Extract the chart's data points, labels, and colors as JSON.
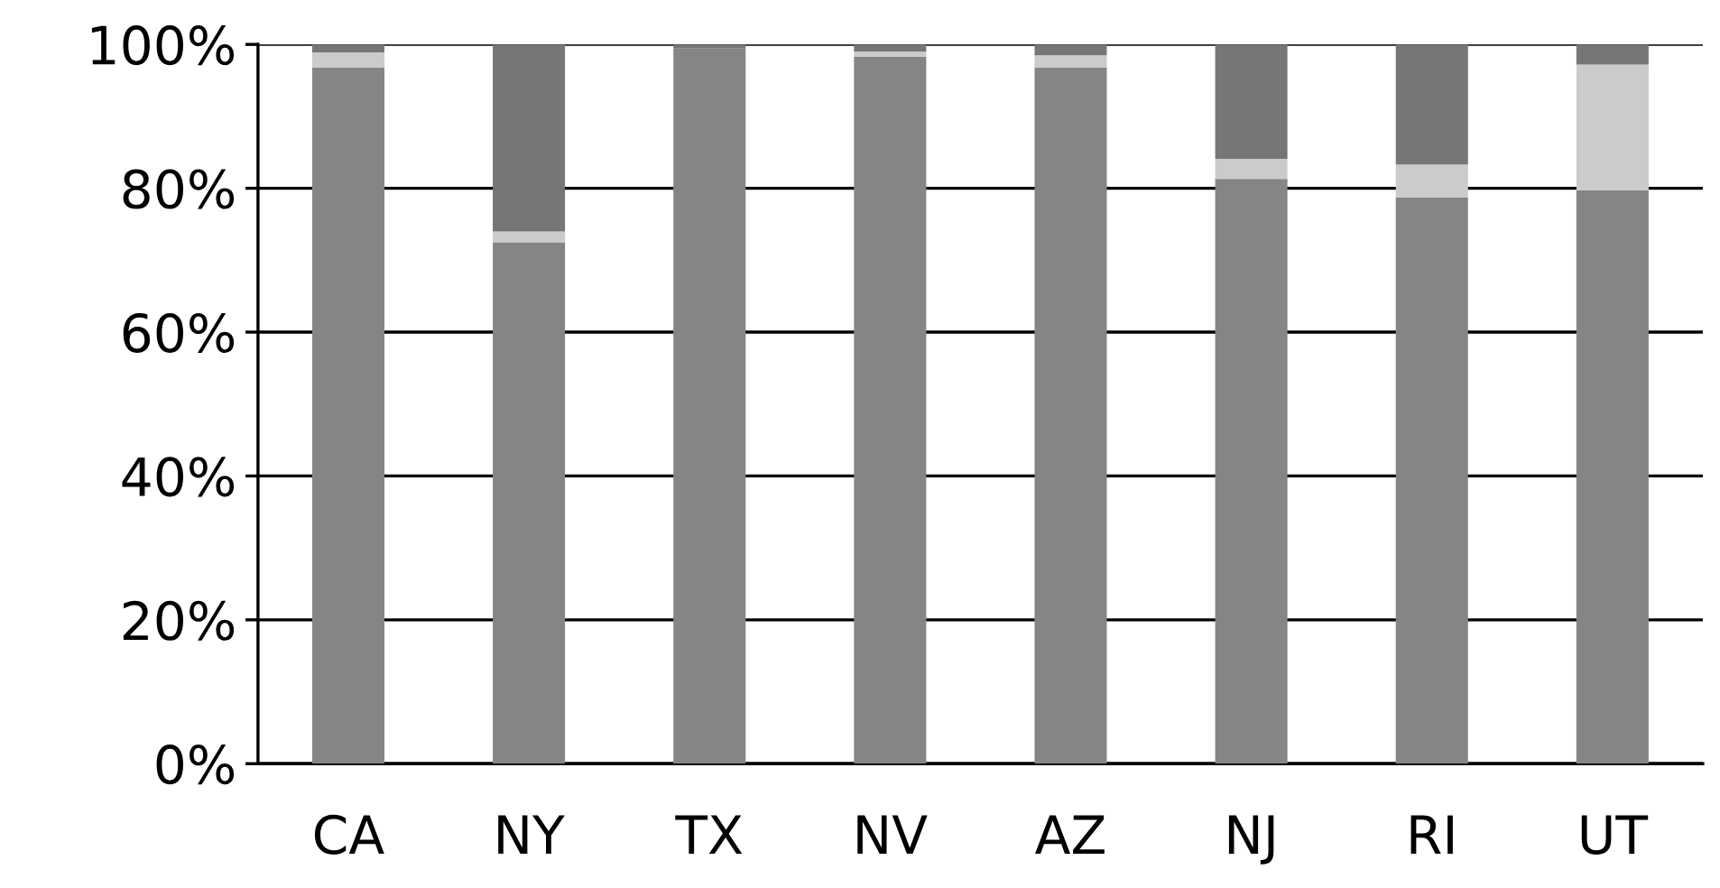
{
  "chart_data": {
    "type": "bar",
    "stacked": true,
    "categories": [
      "CA",
      "NY",
      "TX",
      "NV",
      "AZ",
      "NJ",
      "RI",
      "UT"
    ],
    "series": [
      {
        "color": "#858585",
        "values": [
          96.8,
          72.5,
          99.5,
          98.3,
          96.8,
          81.3,
          78.7,
          79.7
        ]
      },
      {
        "color": "#cbcbcb",
        "values": [
          2.1,
          1.5,
          0,
          0.7,
          1.7,
          2.8,
          4.6,
          17.5
        ]
      },
      {
        "color": "#767676",
        "values": [
          1.1,
          26.0,
          0.5,
          1.0,
          1.5,
          15.9,
          16.7,
          2.8
        ]
      }
    ],
    "ylim": [
      0,
      100
    ],
    "yticks": [
      {
        "value": 0,
        "label": "0%"
      },
      {
        "value": 20,
        "label": "20%"
      },
      {
        "value": 40,
        "label": "40%"
      },
      {
        "value": 60,
        "label": "60%"
      },
      {
        "value": 80,
        "label": "80%"
      },
      {
        "value": 100,
        "label": "100%"
      }
    ],
    "grid": "y"
  }
}
